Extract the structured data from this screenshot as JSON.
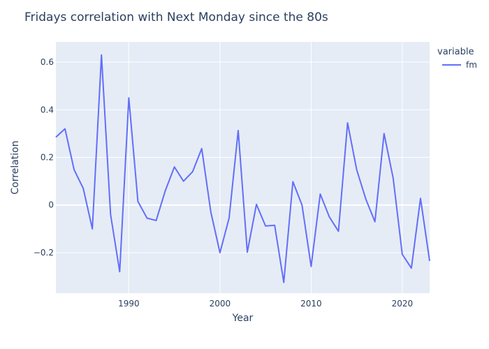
{
  "chart_data": {
    "type": "line",
    "title": "Fridays correlation with Next Monday since the 80s",
    "xlabel": "Year",
    "ylabel": "Correlation",
    "legend_title": "variable",
    "legend_position": "top-right",
    "grid": true,
    "xlim": [
      1982,
      2023
    ],
    "ylim": [
      -0.37,
      0.685
    ],
    "xticks": [
      1990,
      2000,
      2010,
      2020
    ],
    "yticks": [
      -0.2,
      0,
      0.2,
      0.4,
      0.6
    ],
    "ytick_labels": [
      "−0.2",
      "0",
      "0.2",
      "0.4",
      "0.6"
    ],
    "series": [
      {
        "name": "fm",
        "color": "#636efa",
        "x": [
          1982,
          1983,
          1984,
          1985,
          1986,
          1987,
          1988,
          1989,
          1990,
          1991,
          1992,
          1993,
          1994,
          1995,
          1996,
          1997,
          1998,
          1999,
          2000,
          2001,
          2002,
          2003,
          2004,
          2005,
          2006,
          2007,
          2008,
          2009,
          2010,
          2011,
          2012,
          2013,
          2014,
          2015,
          2016,
          2017,
          2018,
          2019,
          2020,
          2021,
          2022,
          2023
        ],
        "y": [
          0.285,
          0.32,
          0.148,
          0.07,
          -0.1,
          0.63,
          -0.04,
          -0.28,
          0.45,
          0.015,
          -0.055,
          -0.065,
          0.06,
          0.16,
          0.1,
          0.14,
          0.237,
          -0.03,
          -0.2,
          -0.055,
          0.313,
          -0.198,
          0.003,
          -0.088,
          -0.085,
          -0.325,
          0.098,
          0.0,
          -0.258,
          0.046,
          -0.05,
          -0.11,
          0.345,
          0.148,
          0.025,
          -0.07,
          0.3,
          0.113,
          -0.207,
          -0.265,
          0.028,
          -0.235
        ]
      }
    ]
  },
  "colors": {
    "plot_background": "#e5ecf6",
    "grid": "#ffffff"
  }
}
